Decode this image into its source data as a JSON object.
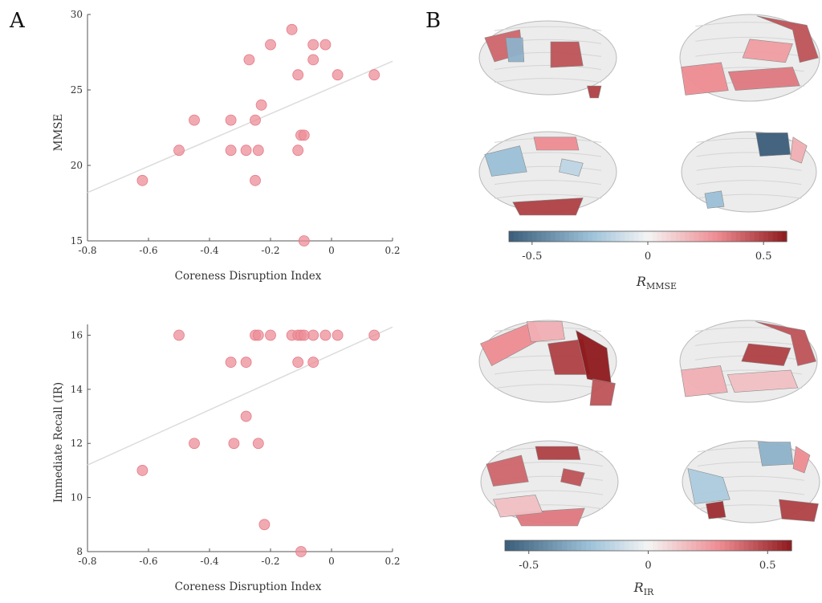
{
  "panel_labels": {
    "a": "A",
    "b": "B"
  },
  "colors": {
    "point": "#ec8e98",
    "fit_line": "#dcdcdc",
    "axis": "#555555",
    "colormap": [
      "#3b5d7a",
      "#9ec3da",
      "#f4f4f4",
      "#ee8c92",
      "#8e1a1e"
    ]
  },
  "chart_data": [
    {
      "type": "scatter",
      "title": "",
      "xlabel": "Coreness Disruption Index",
      "ylabel": "MMSE",
      "xlim": [
        -0.8,
        0.2
      ],
      "ylim": [
        15,
        30
      ],
      "xticks": [
        "-0.8",
        "-0.6",
        "-0.4",
        "-0.2",
        "0",
        "0.2"
      ],
      "yticks": [
        "15",
        "20",
        "25",
        "30"
      ],
      "trendline": {
        "x": [
          -0.8,
          0.2
        ],
        "y": [
          18.2,
          26.9
        ]
      },
      "points": [
        {
          "x": -0.62,
          "y": 19
        },
        {
          "x": -0.5,
          "y": 21
        },
        {
          "x": -0.45,
          "y": 23
        },
        {
          "x": -0.33,
          "y": 23
        },
        {
          "x": -0.33,
          "y": 21
        },
        {
          "x": -0.28,
          "y": 21
        },
        {
          "x": -0.27,
          "y": 27
        },
        {
          "x": -0.25,
          "y": 23
        },
        {
          "x": -0.25,
          "y": 19
        },
        {
          "x": -0.24,
          "y": 21
        },
        {
          "x": -0.23,
          "y": 24
        },
        {
          "x": -0.2,
          "y": 28
        },
        {
          "x": -0.13,
          "y": 29
        },
        {
          "x": -0.11,
          "y": 26
        },
        {
          "x": -0.11,
          "y": 21
        },
        {
          "x": -0.1,
          "y": 22
        },
        {
          "x": -0.09,
          "y": 22
        },
        {
          "x": -0.09,
          "y": 15
        },
        {
          "x": -0.06,
          "y": 28
        },
        {
          "x": -0.06,
          "y": 27
        },
        {
          "x": -0.02,
          "y": 28
        },
        {
          "x": 0.02,
          "y": 26
        },
        {
          "x": 0.14,
          "y": 26
        }
      ]
    },
    {
      "type": "scatter",
      "title": "",
      "xlabel": "Coreness Disruption Index",
      "ylabel": "Immediate Recall (IR)",
      "xlim": [
        -0.8,
        0.2
      ],
      "ylim": [
        8,
        16.4
      ],
      "xticks": [
        "-0.8",
        "-0.6",
        "-0.4",
        "-0.2",
        "0",
        "0.2"
      ],
      "yticks": [
        "8",
        "10",
        "12",
        "14",
        "16"
      ],
      "trendline": {
        "x": [
          -0.8,
          0.2
        ],
        "y": [
          11.2,
          16.3
        ]
      },
      "points": [
        {
          "x": -0.62,
          "y": 11
        },
        {
          "x": -0.5,
          "y": 16
        },
        {
          "x": -0.45,
          "y": 12
        },
        {
          "x": -0.33,
          "y": 15
        },
        {
          "x": -0.32,
          "y": 12
        },
        {
          "x": -0.28,
          "y": 15
        },
        {
          "x": -0.28,
          "y": 13
        },
        {
          "x": -0.25,
          "y": 16
        },
        {
          "x": -0.24,
          "y": 16
        },
        {
          "x": -0.24,
          "y": 12
        },
        {
          "x": -0.22,
          "y": 9
        },
        {
          "x": -0.2,
          "y": 16
        },
        {
          "x": -0.13,
          "y": 16
        },
        {
          "x": -0.11,
          "y": 16
        },
        {
          "x": -0.11,
          "y": 15
        },
        {
          "x": -0.1,
          "y": 16
        },
        {
          "x": -0.1,
          "y": 8
        },
        {
          "x": -0.09,
          "y": 16
        },
        {
          "x": -0.06,
          "y": 16
        },
        {
          "x": -0.06,
          "y": 15
        },
        {
          "x": -0.02,
          "y": 16
        },
        {
          "x": 0.02,
          "y": 16
        },
        {
          "x": 0.14,
          "y": 16
        }
      ]
    }
  ],
  "brain_panels": [
    {
      "colorbar": {
        "ticks": [
          "-0.5",
          "0",
          "0.5"
        ],
        "label_main": "R",
        "label_sub": "MMSE",
        "range": [
          -0.6,
          0.6
        ]
      },
      "views": [
        {
          "name": "left-lateral",
          "regions": [
            {
              "value": 0.4
            },
            {
              "value": -0.3
            },
            {
              "value": 0.45
            },
            {
              "value": 0.5
            }
          ]
        },
        {
          "name": "right-lateral",
          "regions": [
            {
              "value": 0.25
            },
            {
              "value": 0.45
            },
            {
              "value": 0.3
            },
            {
              "value": 0.35
            }
          ]
        },
        {
          "name": "left-medial",
          "regions": [
            {
              "value": -0.25
            },
            {
              "value": 0.3
            },
            {
              "value": 0.5
            },
            {
              "value": -0.15
            }
          ]
        },
        {
          "name": "right-medial",
          "regions": [
            {
              "value": -0.6
            },
            {
              "value": -0.25
            },
            {
              "value": 0.2
            }
          ]
        }
      ]
    },
    {
      "colorbar": {
        "ticks": [
          "-0.5",
          "0",
          "0.5"
        ],
        "label_main": "R",
        "label_sub": "IR",
        "range": [
          -0.6,
          0.6
        ]
      },
      "views": [
        {
          "name": "left-lateral",
          "regions": [
            {
              "value": 0.3
            },
            {
              "value": 0.5
            },
            {
              "value": 0.6
            },
            {
              "value": 0.45
            },
            {
              "value": 0.2
            }
          ]
        },
        {
          "name": "right-lateral",
          "regions": [
            {
              "value": 0.5
            },
            {
              "value": 0.45
            },
            {
              "value": 0.2
            },
            {
              "value": 0.15
            }
          ]
        },
        {
          "name": "left-medial",
          "regions": [
            {
              "value": 0.4
            },
            {
              "value": 0.5
            },
            {
              "value": 0.35
            },
            {
              "value": 0.45
            },
            {
              "value": 0.15
            }
          ]
        },
        {
          "name": "right-medial",
          "regions": [
            {
              "value": -0.3
            },
            {
              "value": 0.55
            },
            {
              "value": 0.3
            },
            {
              "value": 0.5
            },
            {
              "value": -0.2
            }
          ]
        }
      ]
    }
  ]
}
